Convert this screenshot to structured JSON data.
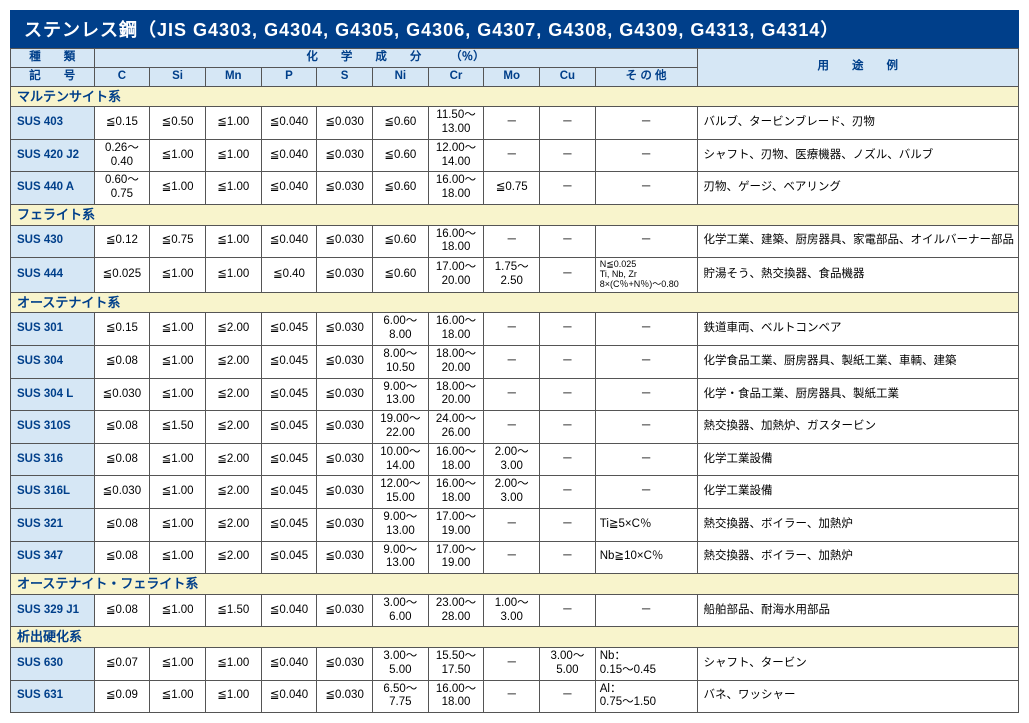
{
  "title": "ステンレス鋼（JIS G4303, G4304, G4305, G4306, G4307, G4308, G4309, G4313, G4314）",
  "headers": {
    "kind": "種　　類",
    "chem": "化　　学　　成　　分　　　（％）",
    "usage": "用　　途　　例",
    "symbol": "記　　号",
    "C": "C",
    "Si": "Si",
    "Mn": "Mn",
    "P": "P",
    "S": "S",
    "Ni": "Ni",
    "Cr": "Cr",
    "Mo": "Mo",
    "Cu": "Cu",
    "Other": "そ の 他"
  },
  "groups": [
    {
      "name": "マルテンサイト系",
      "rows": [
        {
          "sym": "SUS 403",
          "C": "≦0.15",
          "Si": "≦0.50",
          "Mn": "≦1.00",
          "P": "≦0.040",
          "S": "≦0.030",
          "Ni": "≦0.60",
          "Cr": "11.50～\n13.00",
          "Mo": "－",
          "Cu": "－",
          "Other": "－",
          "use": "バルブ、タービンブレード、刃物"
        },
        {
          "sym": "SUS 420 J2",
          "C": "0.26～\n0.40",
          "Si": "≦1.00",
          "Mn": "≦1.00",
          "P": "≦0.040",
          "S": "≦0.030",
          "Ni": "≦0.60",
          "Cr": "12.00～\n14.00",
          "Mo": "－",
          "Cu": "－",
          "Other": "－",
          "use": "シャフト、刃物、医療機器、ノズル、バルブ"
        },
        {
          "sym": "SUS 440 A",
          "C": "0.60～\n0.75",
          "Si": "≦1.00",
          "Mn": "≦1.00",
          "P": "≦0.040",
          "S": "≦0.030",
          "Ni": "≦0.60",
          "Cr": "16.00～\n18.00",
          "Mo": "≦0.75",
          "Cu": "－",
          "Other": "－",
          "use": "刃物、ゲージ、ベアリング"
        }
      ]
    },
    {
      "name": "フェライト系",
      "rows": [
        {
          "sym": "SUS 430",
          "C": "≦0.12",
          "Si": "≦0.75",
          "Mn": "≦1.00",
          "P": "≦0.040",
          "S": "≦0.030",
          "Ni": "≦0.60",
          "Cr": "16.00～\n18.00",
          "Mo": "－",
          "Cu": "－",
          "Other": "－",
          "use": "化学工業、建築、厨房器具、家電部品、オイルバーナー部品"
        },
        {
          "sym": "SUS 444",
          "C": "≦0.025",
          "Si": "≦1.00",
          "Mn": "≦1.00",
          "P": "≦0.40",
          "S": "≦0.030",
          "Ni": "≦0.60",
          "Cr": "17.00～\n20.00",
          "Mo": "1.75～\n2.50",
          "Cu": "－",
          "Other": "N≦0.025\nTi, Nb, Zr\n8×(C％+N％)～0.80",
          "otherSmall": true,
          "use": "貯湯そう、熱交換器、食品機器"
        }
      ]
    },
    {
      "name": "オーステナイト系",
      "rows": [
        {
          "sym": "SUS 301",
          "C": "≦0.15",
          "Si": "≦1.00",
          "Mn": "≦2.00",
          "P": "≦0.045",
          "S": "≦0.030",
          "Ni": "6.00～\n8.00",
          "Cr": "16.00～\n18.00",
          "Mo": "－",
          "Cu": "－",
          "Other": "－",
          "use": "鉄道車両、ベルトコンベア"
        },
        {
          "sym": "SUS 304",
          "C": "≦0.08",
          "Si": "≦1.00",
          "Mn": "≦2.00",
          "P": "≦0.045",
          "S": "≦0.030",
          "Ni": "8.00～\n10.50",
          "Cr": "18.00～\n20.00",
          "Mo": "－",
          "Cu": "－",
          "Other": "－",
          "use": "化学食品工業、厨房器具、製紙工業、車輌、建築"
        },
        {
          "sym": "SUS 304 L",
          "C": "≦0.030",
          "Si": "≦1.00",
          "Mn": "≦2.00",
          "P": "≦0.045",
          "S": "≦0.030",
          "Ni": "9.00～\n13.00",
          "Cr": "18.00～\n20.00",
          "Mo": "－",
          "Cu": "－",
          "Other": "－",
          "use": "化学・食品工業、厨房器具、製紙工業"
        },
        {
          "sym": "SUS 310S",
          "C": "≦0.08",
          "Si": "≦1.50",
          "Mn": "≦2.00",
          "P": "≦0.045",
          "S": "≦0.030",
          "Ni": "19.00～\n22.00",
          "Cr": "24.00～\n26.00",
          "Mo": "－",
          "Cu": "－",
          "Other": "－",
          "use": "熱交換器、加熱炉、ガスタービン"
        },
        {
          "sym": "SUS 316",
          "C": "≦0.08",
          "Si": "≦1.00",
          "Mn": "≦2.00",
          "P": "≦0.045",
          "S": "≦0.030",
          "Ni": "10.00～\n14.00",
          "Cr": "16.00～\n18.00",
          "Mo": "2.00～\n3.00",
          "Cu": "－",
          "Other": "－",
          "use": "化学工業設備"
        },
        {
          "sym": "SUS 316L",
          "C": "≦0.030",
          "Si": "≦1.00",
          "Mn": "≦2.00",
          "P": "≦0.045",
          "S": "≦0.030",
          "Ni": "12.00～\n15.00",
          "Cr": "16.00～\n18.00",
          "Mo": "2.00～\n3.00",
          "Cu": "－",
          "Other": "－",
          "use": "化学工業設備"
        },
        {
          "sym": "SUS 321",
          "C": "≦0.08",
          "Si": "≦1.00",
          "Mn": "≦2.00",
          "P": "≦0.045",
          "S": "≦0.030",
          "Ni": "9.00～\n13.00",
          "Cr": "17.00～\n19.00",
          "Mo": "－",
          "Cu": "－",
          "Other": "Ti≧5×C％",
          "use": "熱交換器、ボイラー、加熱炉"
        },
        {
          "sym": "SUS 347",
          "C": "≦0.08",
          "Si": "≦1.00",
          "Mn": "≦2.00",
          "P": "≦0.045",
          "S": "≦0.030",
          "Ni": "9.00～\n13.00",
          "Cr": "17.00～\n19.00",
          "Mo": "－",
          "Cu": "－",
          "Other": "Nb≧10×C％",
          "use": "熱交換器、ボイラー、加熱炉"
        }
      ]
    },
    {
      "name": "オーステナイト・フェライト系",
      "rows": [
        {
          "sym": "SUS 329 J1",
          "C": "≦0.08",
          "Si": "≦1.00",
          "Mn": "≦1.50",
          "P": "≦0.040",
          "S": "≦0.030",
          "Ni": "3.00～\n6.00",
          "Cr": "23.00～\n28.00",
          "Mo": "1.00～\n3.00",
          "Cu": "－",
          "Other": "－",
          "use": "船舶部品、耐海水用部品"
        }
      ]
    },
    {
      "name": "析出硬化系",
      "rows": [
        {
          "sym": "SUS 630",
          "C": "≦0.07",
          "Si": "≦1.00",
          "Mn": "≦1.00",
          "P": "≦0.040",
          "S": "≦0.030",
          "Ni": "3.00～\n5.00",
          "Cr": "15.50～\n17.50",
          "Mo": "－",
          "Cu": "3.00～\n5.00",
          "Other": "Nb：\n0.15～0.45",
          "use": "シャフト、タービン"
        },
        {
          "sym": "SUS 631",
          "C": "≦0.09",
          "Si": "≦1.00",
          "Mn": "≦1.00",
          "P": "≦0.040",
          "S": "≦0.030",
          "Ni": "6.50～\n7.75",
          "Cr": "16.00～\n18.00",
          "Mo": "－",
          "Cu": "－",
          "Other": "Al：\n0.75～1.50",
          "use": "バネ、ワッシャー"
        }
      ]
    }
  ]
}
